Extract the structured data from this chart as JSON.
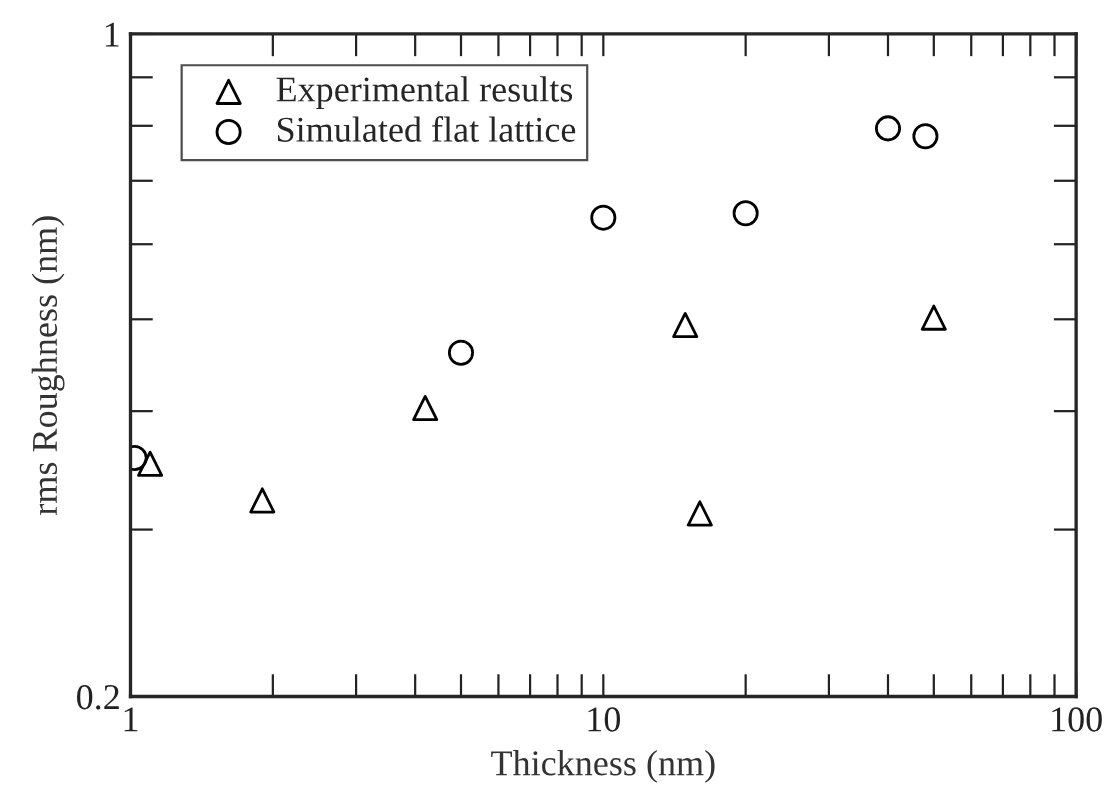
{
  "chart_data": {
    "type": "scatter",
    "xlabel": "Thickness (nm)",
    "ylabel": "rms Roughness (nm)",
    "log": "xy",
    "xlim": [
      1,
      100
    ],
    "ylim": [
      0.2,
      1
    ],
    "xticks": [
      1,
      {
        "value": 2,
        "label": null
      },
      {
        "value": 3,
        "label": null
      },
      {
        "value": 4,
        "label": null
      },
      {
        "value": 5,
        "label": null
      },
      {
        "value": 6,
        "label": null
      },
      {
        "value": 7,
        "label": null
      },
      {
        "value": 8,
        "label": null
      },
      {
        "value": 9,
        "label": null
      },
      10,
      {
        "value": 20,
        "label": null
      },
      {
        "value": 30,
        "label": null
      },
      {
        "value": 40,
        "label": null
      },
      {
        "value": 50,
        "label": null
      },
      {
        "value": 60,
        "label": null
      },
      {
        "value": 70,
        "label": null
      },
      {
        "value": 80,
        "label": null
      },
      {
        "value": 90,
        "label": null
      },
      100
    ],
    "yticks": [
      0.2,
      {
        "value": 0.3,
        "label": null
      },
      {
        "value": 0.4,
        "label": null
      },
      {
        "value": 0.5,
        "label": null
      },
      {
        "value": 0.6,
        "label": null
      },
      {
        "value": 0.7,
        "label": null
      },
      {
        "value": 0.8,
        "label": null
      },
      {
        "value": 0.9,
        "label": null
      },
      1
    ],
    "legend": "top left",
    "grid": false,
    "series": [
      {
        "name": "Experimental results",
        "color": "#000000",
        "marker": "triangle",
        "x": [
          1.1,
          1.9,
          4.2,
          14.9,
          16.0,
          50
        ],
        "values": [
          0.352,
          0.322,
          0.403,
          0.493,
          0.312,
          0.502
        ]
      },
      {
        "name": "Simulated flat lattice",
        "color": "#000000",
        "marker": "circle",
        "x": [
          1.02,
          5.0,
          10,
          20,
          40,
          48
        ],
        "values": [
          0.357,
          0.461,
          0.64,
          0.647,
          0.795,
          0.78
        ]
      }
    ]
  }
}
